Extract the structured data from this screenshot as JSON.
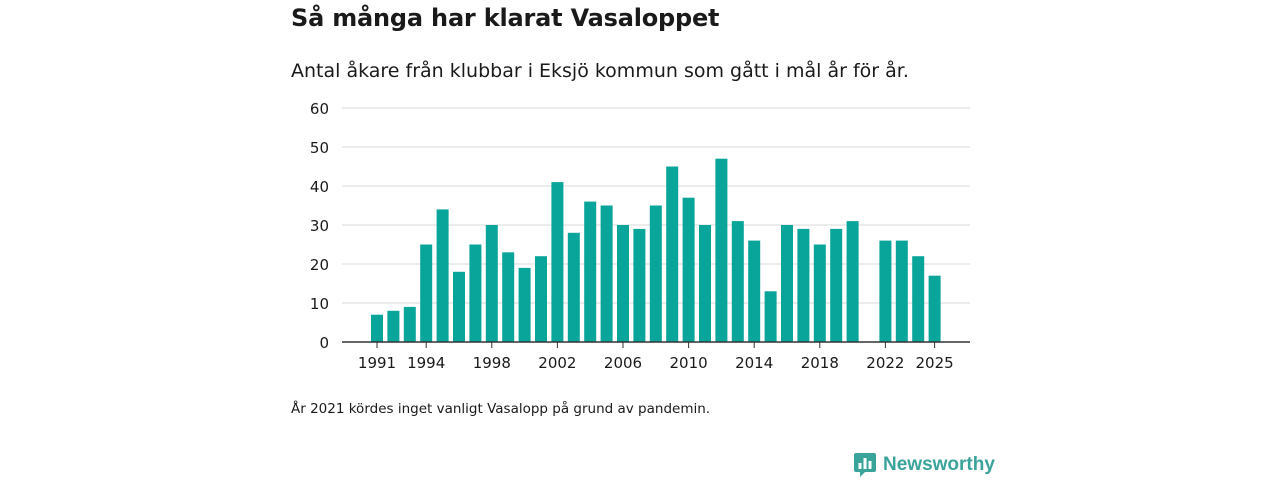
{
  "header": {
    "title": "Så många har klarat Vasaloppet",
    "subtitle": "Antal åkare från klubbar i Eksjö kommun som gått i mål år för år."
  },
  "footnote": "År 2021 kördes inget vanligt Vasalopp på grund av pandemin.",
  "brand": {
    "name": "Newsworthy",
    "icon": "newsworthy-logo-icon",
    "color": "#3aa39a"
  },
  "colors": {
    "bar": "#0aa59a",
    "grid": "#d9d9d9",
    "axis": "#333333",
    "text": "#1a1a1a"
  },
  "chart_data": {
    "type": "bar",
    "title": "Så många har klarat Vasaloppet",
    "xlabel": "",
    "ylabel": "",
    "ylim": [
      0,
      60
    ],
    "yticks": [
      0,
      10,
      20,
      30,
      40,
      50,
      60
    ],
    "xticks": [
      1991,
      1994,
      1998,
      2002,
      2006,
      2010,
      2014,
      2018,
      2022,
      2025
    ],
    "grid": true,
    "categories": [
      1991,
      1992,
      1993,
      1994,
      1995,
      1996,
      1997,
      1998,
      1999,
      2000,
      2001,
      2002,
      2003,
      2004,
      2005,
      2006,
      2007,
      2008,
      2009,
      2010,
      2011,
      2012,
      2013,
      2014,
      2015,
      2016,
      2017,
      2018,
      2019,
      2020,
      2021,
      2022,
      2023,
      2024,
      2025
    ],
    "values": [
      7,
      8,
      9,
      25,
      34,
      18,
      25,
      30,
      23,
      19,
      22,
      41,
      28,
      36,
      35,
      30,
      29,
      35,
      45,
      37,
      30,
      47,
      31,
      26,
      13,
      30,
      29,
      25,
      29,
      31,
      null,
      26,
      26,
      22,
      17
    ]
  }
}
